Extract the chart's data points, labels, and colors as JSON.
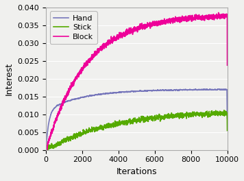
{
  "title": "",
  "xlabel": "Iterations",
  "ylabel": "Interest",
  "xlim": [
    0,
    10000
  ],
  "ylim": [
    0.0,
    0.04
  ],
  "yticks": [
    0.0,
    0.005,
    0.01,
    0.015,
    0.02,
    0.025,
    0.03,
    0.035,
    0.04
  ],
  "xticks": [
    0,
    2000,
    4000,
    6000,
    8000,
    10000
  ],
  "legend_labels": [
    "Hand",
    "Stick",
    "Block"
  ],
  "colors": {
    "Hand": "#7777bb",
    "Stick": "#55aa00",
    "Block": "#ee0099"
  },
  "line_width": 1.2,
  "figsize": [
    3.56,
    2.64
  ],
  "dpi": 100,
  "background_color": "#f0f0ee"
}
